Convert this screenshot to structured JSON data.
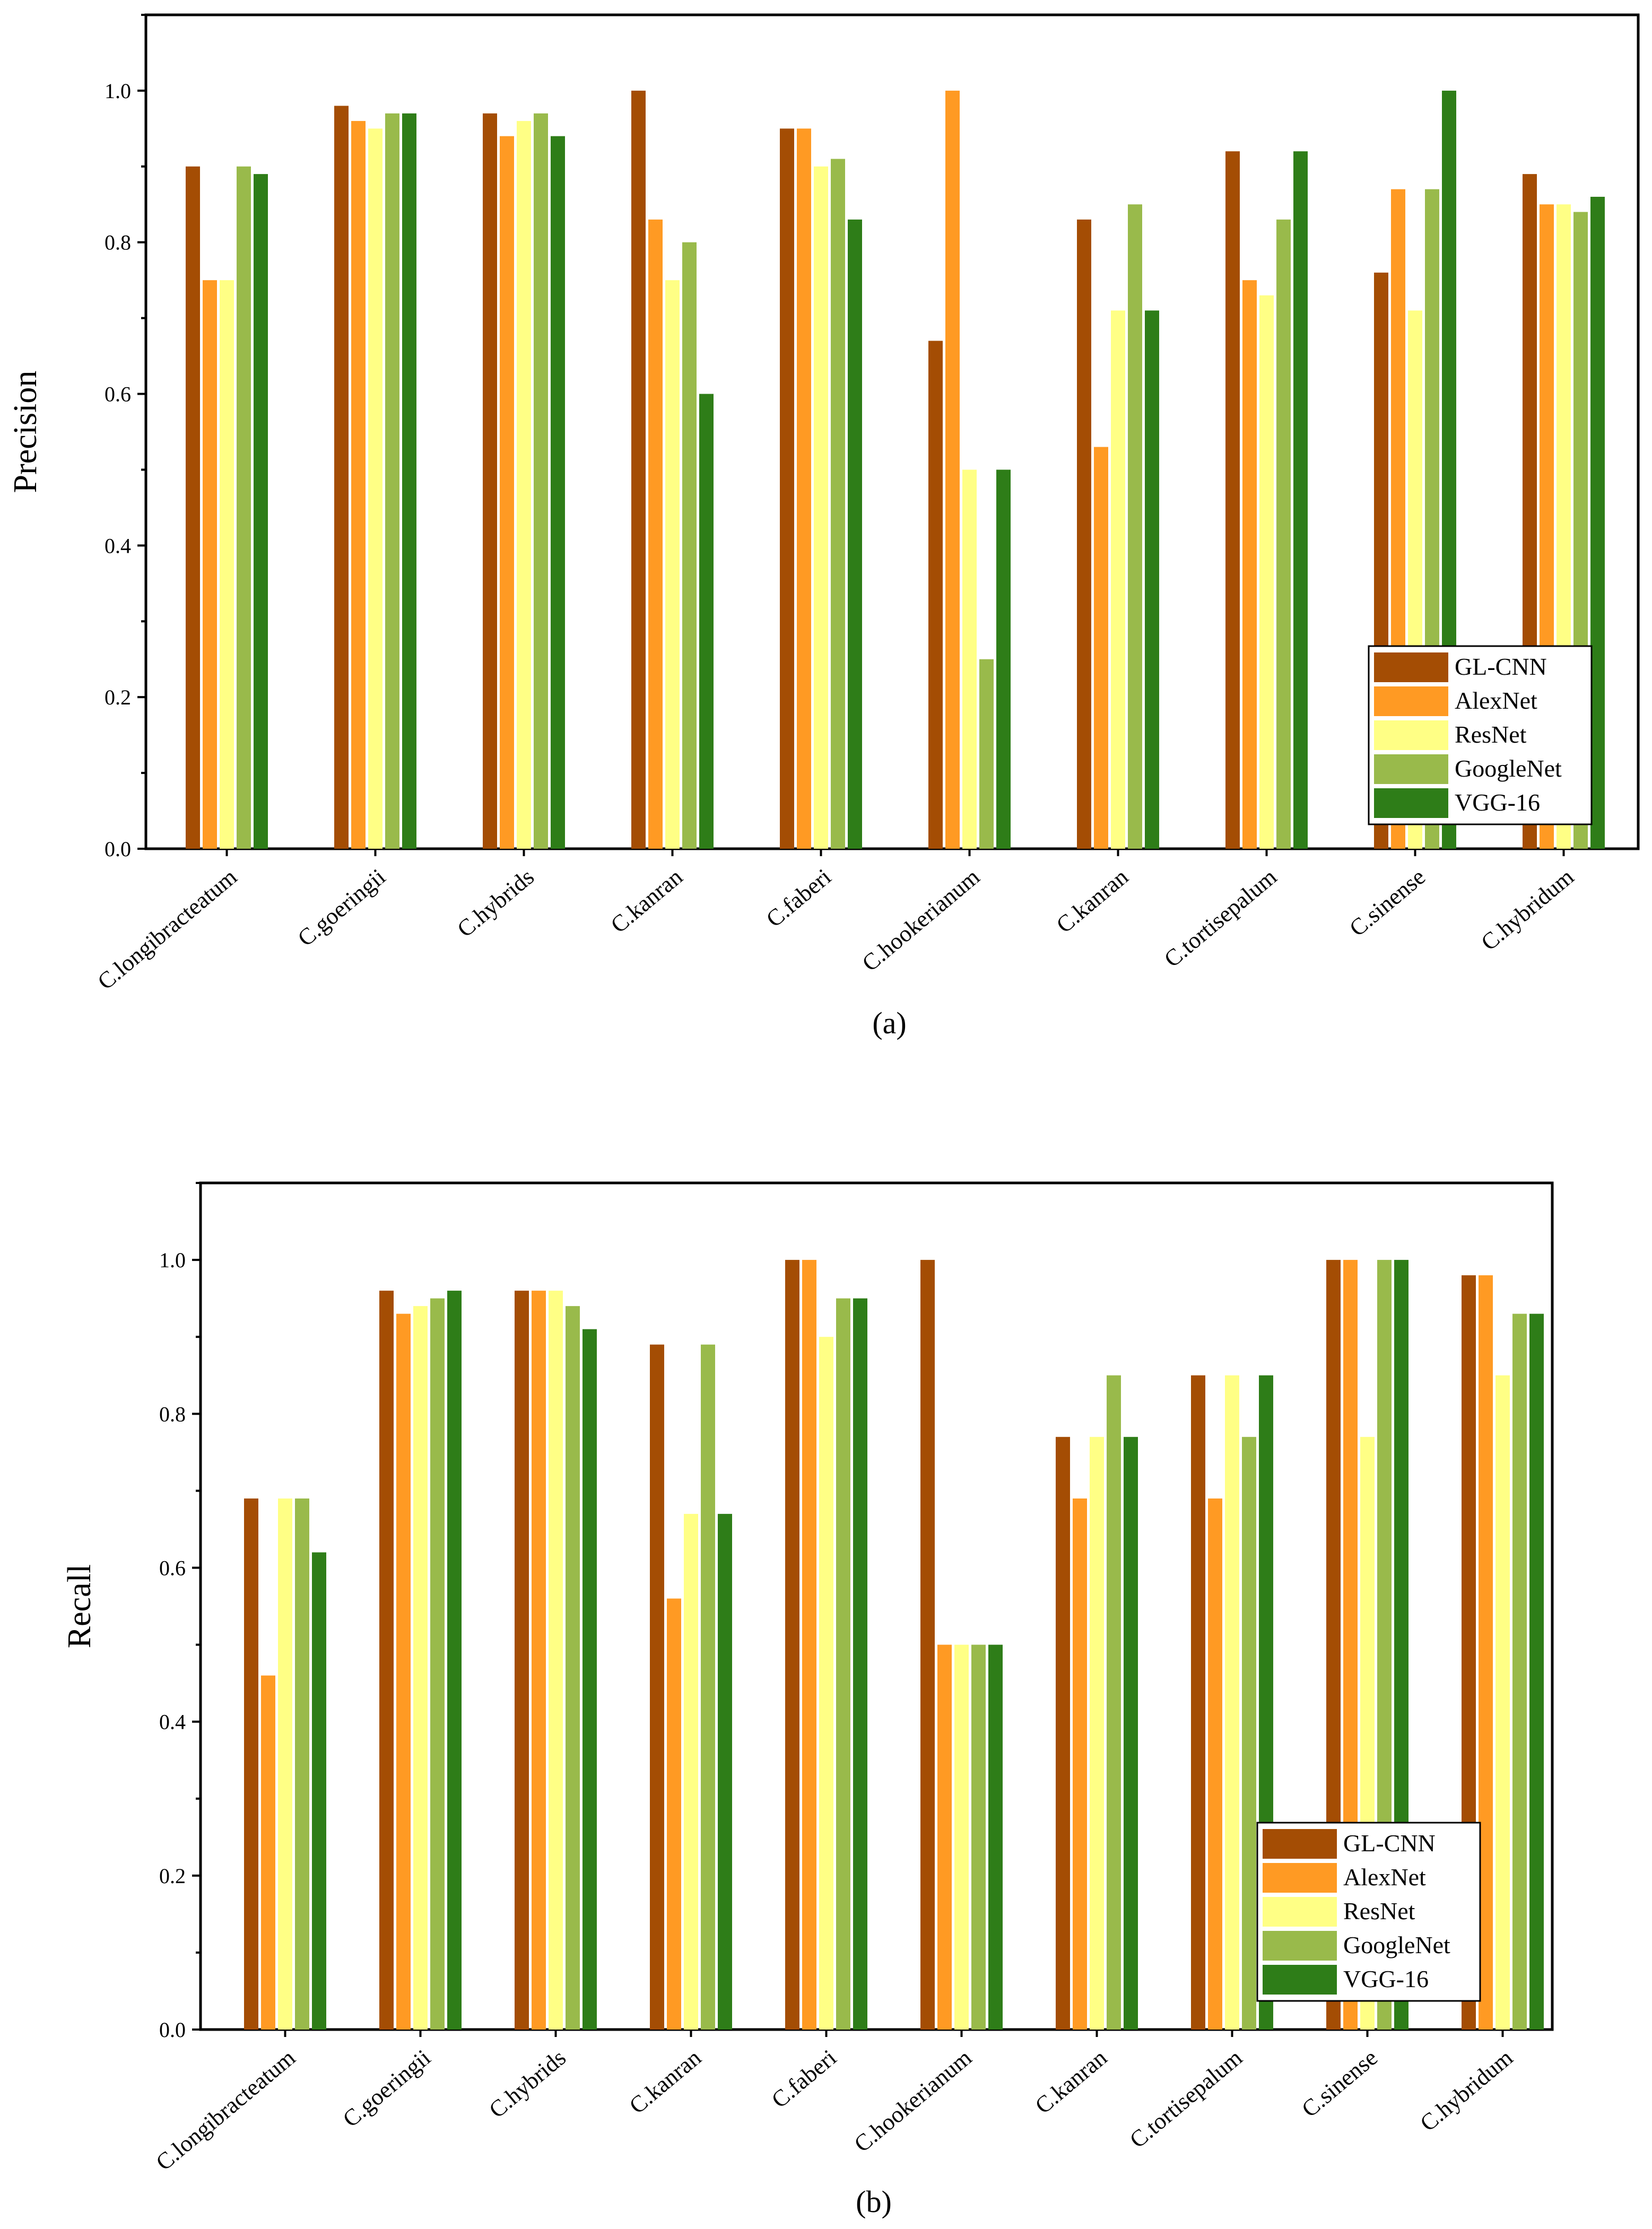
{
  "series_colors": [
    "#A44D04",
    "#FF9A23",
    "#FFFF85",
    "#99BA4B",
    "#2E7D18"
  ],
  "chart_data": [
    {
      "type": "bar",
      "panel": "(a)",
      "title": "",
      "xlabel": "",
      "ylabel": "Precision",
      "ylim": [
        0,
        1.1
      ],
      "yticks": [
        "0.0",
        "0.2",
        "0.4",
        "0.6",
        "0.8",
        "1.0"
      ],
      "legend_position": "bottom-right",
      "categories": [
        "C.longibracteatum",
        "C.goeringii",
        "C.hybrids",
        "C.kanran",
        "C.faberi",
        "C.hookerianum",
        "C.kanran",
        "C.tortisepalum",
        "C.sinense",
        "C.hybridum"
      ],
      "series": [
        {
          "name": "GL-CNN",
          "values": [
            0.9,
            0.98,
            0.97,
            1.0,
            0.95,
            0.67,
            0.83,
            0.92,
            0.76,
            0.89
          ]
        },
        {
          "name": "AlexNet",
          "values": [
            0.75,
            0.96,
            0.94,
            0.83,
            0.95,
            1.0,
            0.53,
            0.75,
            0.87,
            0.85
          ]
        },
        {
          "name": "ResNet",
          "values": [
            0.75,
            0.95,
            0.96,
            0.75,
            0.9,
            0.5,
            0.71,
            0.73,
            0.71,
            0.85
          ]
        },
        {
          "name": "GoogleNet",
          "values": [
            0.9,
            0.97,
            0.97,
            0.8,
            0.91,
            0.25,
            0.85,
            0.83,
            0.87,
            0.84
          ]
        },
        {
          "name": "VGG-16",
          "values": [
            0.89,
            0.97,
            0.94,
            0.6,
            0.83,
            0.5,
            0.71,
            0.92,
            1.0,
            0.86
          ]
        }
      ]
    },
    {
      "type": "bar",
      "panel": "(b)",
      "title": "",
      "xlabel": "",
      "ylabel": "Recall",
      "ylim": [
        0,
        1.1
      ],
      "yticks": [
        "0.0",
        "0.2",
        "0.4",
        "0.6",
        "0.8",
        "1.0"
      ],
      "legend_position": "bottom-right",
      "categories": [
        "C.longibracteatum",
        "C.goeringii",
        "C.hybrids",
        "C.kanran",
        "C.faberi",
        "C.hookerianum",
        "C.kanran",
        "C.tortisepalum",
        "C.sinense",
        "C.hybridum"
      ],
      "series": [
        {
          "name": "GL-CNN",
          "values": [
            0.69,
            0.96,
            0.96,
            0.89,
            1.0,
            1.0,
            0.77,
            0.85,
            1.0,
            0.98
          ]
        },
        {
          "name": "AlexNet",
          "values": [
            0.46,
            0.93,
            0.96,
            0.56,
            1.0,
            0.5,
            0.69,
            0.69,
            1.0,
            0.98
          ]
        },
        {
          "name": "ResNet",
          "values": [
            0.69,
            0.94,
            0.96,
            0.67,
            0.9,
            0.5,
            0.77,
            0.85,
            0.77,
            0.85
          ]
        },
        {
          "name": "GoogleNet",
          "values": [
            0.69,
            0.95,
            0.94,
            0.89,
            0.95,
            0.5,
            0.85,
            0.77,
            1.0,
            0.93
          ]
        },
        {
          "name": "VGG-16",
          "values": [
            0.62,
            0.96,
            0.91,
            0.67,
            0.95,
            0.5,
            0.77,
            0.85,
            1.0,
            0.93
          ]
        }
      ]
    }
  ]
}
